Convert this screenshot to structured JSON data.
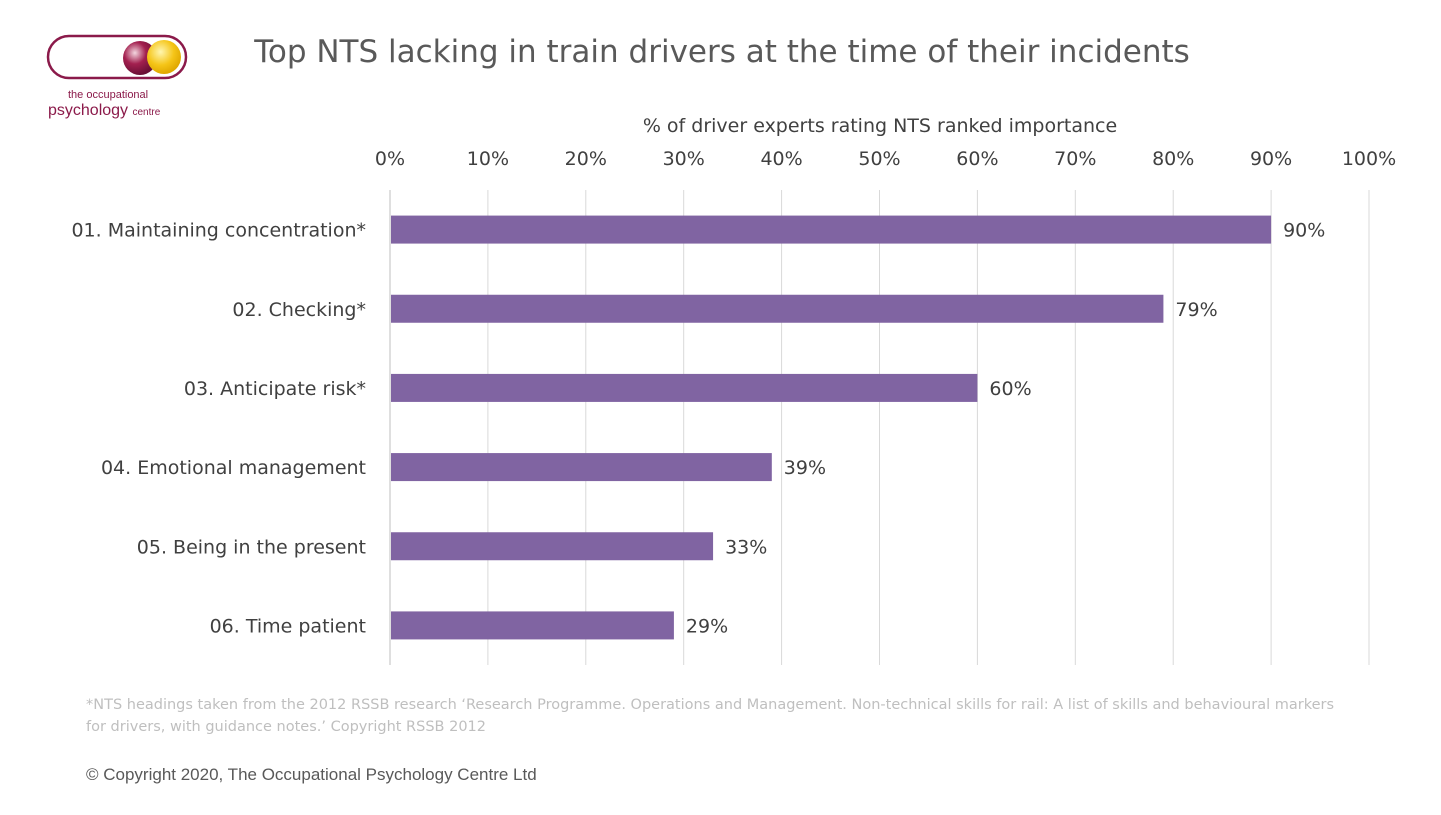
{
  "logo": {
    "text_line1": "the occupational",
    "text_line2": "psychology",
    "text_line3": "centre",
    "colors": {
      "maroon": "#8b1a4a",
      "yellow": "#f5c518"
    }
  },
  "footnote": "*NTS headings taken from the 2012 RSSB research ‘Research Programme. Operations and Management. Non-technical skills for rail: A list of skills and behavioural markers for drivers, with guidance notes.’ Copyright RSSB 2012",
  "copyright": "© Copyright 2020, The Occupational Psychology Centre Ltd",
  "chart_data": {
    "type": "bar",
    "orientation": "horizontal",
    "title": "Top NTS lacking in train drivers at the time of their incidents",
    "xlabel": "% of driver experts rating NTS ranked importance",
    "xlim": [
      0,
      100
    ],
    "xaxis_position": "top",
    "xticks": [
      "0%",
      "10%",
      "20%",
      "30%",
      "40%",
      "50%",
      "60%",
      "70%",
      "80%",
      "90%",
      "100%"
    ],
    "grid": true,
    "categories": [
      "01. Maintaining concentration*",
      "02. Checking*",
      "03. Anticipate risk*",
      "04. Emotional management",
      "05. Being in the present",
      "06. Time patient"
    ],
    "values": [
      90,
      79,
      60,
      39,
      33,
      29
    ],
    "data_labels": [
      "90%",
      "79%",
      "60%",
      "39%",
      "33%",
      "29%"
    ],
    "bar_color": "#8064a2"
  }
}
